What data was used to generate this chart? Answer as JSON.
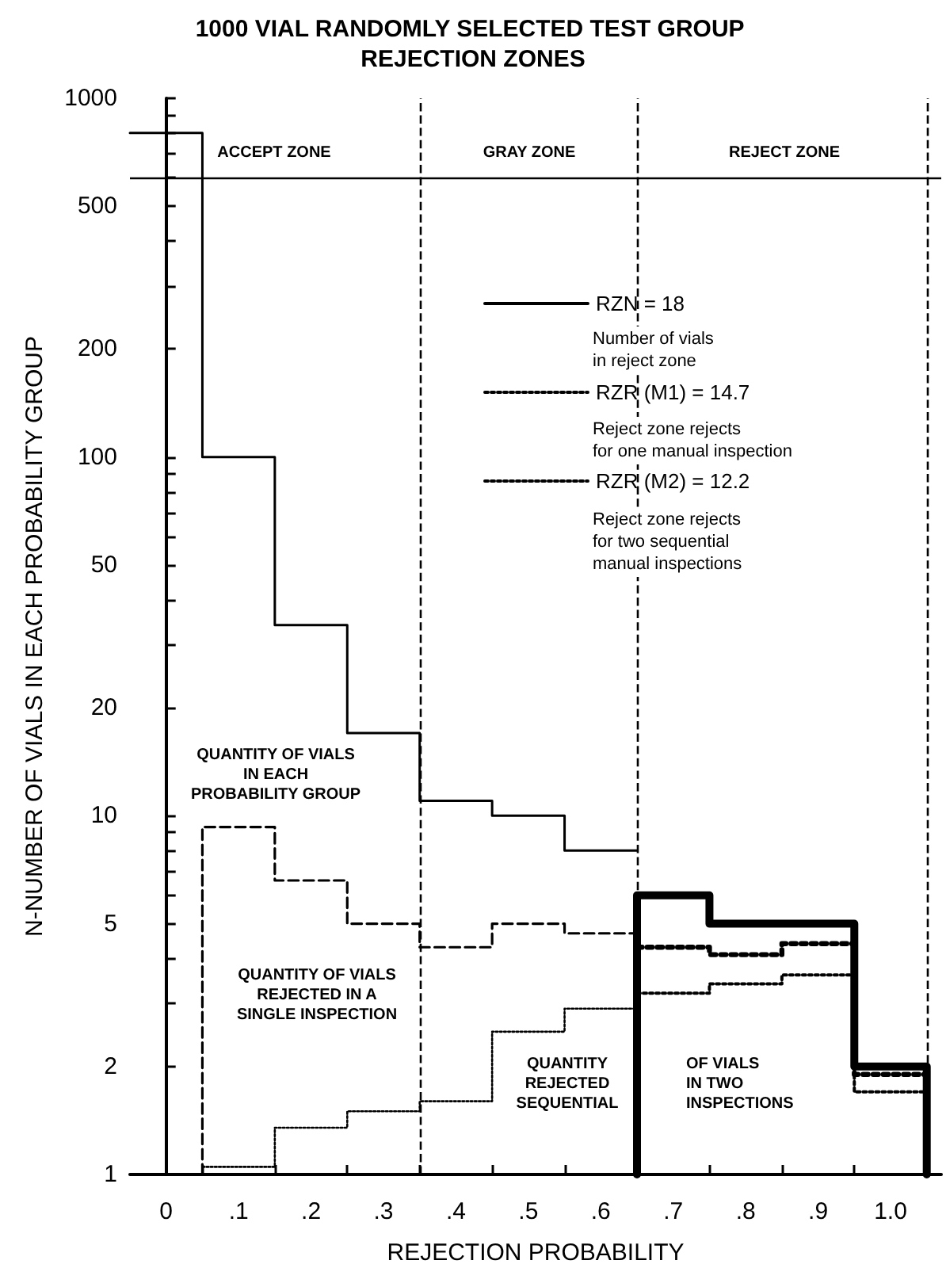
{
  "chart_data": {
    "type": "line",
    "title": "1000 VIAL RANDOMLY SELECTED TEST GROUP REJECTION ZONES",
    "xlabel": "REJECTION PROBABILITY",
    "ylabel": "N-NUMBER OF VIALS IN EACH PROBABILITY GROUP",
    "series": [
      {
        "color": "#000000",
        "line_style": "solid",
        "x": [
          -0.05,
          0.05,
          0.05,
          0.15,
          0.15,
          0.25,
          0.25,
          0.35,
          0.35,
          0.45,
          0.45,
          0.55,
          0.55,
          0.65
        ],
        "values": [
          800,
          800,
          100,
          100,
          34,
          34,
          17,
          17,
          11,
          11,
          10,
          10,
          8,
          8
        ]
      },
      {
        "name": "RZN = 18",
        "color": "#000000",
        "line_style": "solid",
        "x": [
          0.65,
          0.65,
          0.75,
          0.75,
          0.95,
          0.95,
          1.05,
          1.05
        ],
        "values": [
          1,
          6,
          6,
          5,
          5,
          2,
          2,
          1
        ]
      },
      {
        "color": "#000000",
        "line_style": "dashed",
        "x": [
          0.05,
          0.05,
          0.15,
          0.15,
          0.25,
          0.25,
          0.35,
          0.35,
          0.45,
          0.45,
          0.55,
          0.55,
          0.65
        ],
        "values": [
          1,
          9.3,
          9.3,
          6.6,
          6.6,
          5,
          5,
          4.3,
          4.3,
          5,
          5,
          4.7,
          4.7
        ]
      },
      {
        "name": "RZR (M1) = 14.7",
        "color": "#000000",
        "line_style": "dotted",
        "x": [
          0.65,
          0.75,
          0.75,
          0.85,
          0.85,
          0.95,
          0.95,
          1.05
        ],
        "values": [
          4.3,
          4.3,
          4.1,
          4.1,
          4.4,
          4.4,
          1.9,
          1.9
        ]
      },
      {
        "color": "#000000",
        "line_style": "dotted",
        "x": [
          0.05,
          0.15,
          0.15,
          0.25,
          0.25,
          0.35,
          0.35,
          0.45,
          0.45,
          0.55,
          0.55,
          0.65
        ],
        "values": [
          1.05,
          1.05,
          1.35,
          1.35,
          1.5,
          1.5,
          1.6,
          1.6,
          2.5,
          2.5,
          2.9,
          2.9
        ]
      },
      {
        "name": "RZR (M2) = 12.2",
        "color": "#000000",
        "line_style": "dotted",
        "x": [
          0.65,
          0.75,
          0.75,
          0.85,
          0.85,
          0.95,
          0.95,
          1.05
        ],
        "values": [
          3.2,
          3.2,
          3.4,
          3.4,
          3.6,
          3.6,
          1.7,
          1.7
        ]
      }
    ],
    "xlim": [
      -0.05,
      1.07
    ],
    "xticks": [
      {
        "value": 0,
        "label": "0"
      },
      {
        "value": 0.1,
        "label": ".1"
      },
      {
        "value": 0.2,
        "label": ".2"
      },
      {
        "value": 0.3,
        "label": ".3"
      },
      {
        "value": 0.4,
        "label": ".4"
      },
      {
        "value": 0.5,
        "label": ".5"
      },
      {
        "value": 0.6,
        "label": ".6"
      },
      {
        "value": 0.7,
        "label": ".7"
      },
      {
        "value": 0.8,
        "label": ".8"
      },
      {
        "value": 0.9,
        "label": ".9"
      },
      {
        "value": 1.0,
        "label": "1.0"
      },
      {
        "value": 0.05,
        "label": null
      },
      {
        "value": 0.15,
        "label": null
      },
      {
        "value": 0.25,
        "label": null
      },
      {
        "value": 0.35,
        "label": null
      },
      {
        "value": 0.45,
        "label": null
      },
      {
        "value": 0.55,
        "label": null
      },
      {
        "value": 0.65,
        "label": null
      },
      {
        "value": 0.75,
        "label": null
      },
      {
        "value": 0.85,
        "label": null
      },
      {
        "value": 0.95,
        "label": null
      },
      {
        "value": 1.05,
        "label": null
      }
    ],
    "ylim": [
      1,
      1000
    ],
    "yticks": [
      1,
      2,
      5,
      10,
      20,
      50,
      100,
      200,
      500,
      1000,
      {
        "value": 3,
        "label": null
      },
      {
        "value": 4,
        "label": null
      },
      {
        "value": 6,
        "label": null
      },
      {
        "value": 7,
        "label": null
      },
      {
        "value": 8,
        "label": null
      },
      {
        "value": 9,
        "label": null
      },
      {
        "value": 30,
        "label": null
      },
      {
        "value": 40,
        "label": null
      },
      {
        "value": 60,
        "label": null
      },
      {
        "value": 70,
        "label": null
      },
      {
        "value": 80,
        "label": null
      },
      {
        "value": 90,
        "label": null
      },
      {
        "value": 300,
        "label": null
      },
      {
        "value": 400,
        "label": null
      },
      {
        "value": 600,
        "label": null
      },
      {
        "value": 700,
        "label": null
      },
      {
        "value": 800,
        "label": null
      },
      {
        "value": 900,
        "label": null
      }
    ],
    "log": "y",
    "grid": false,
    "legend": "right",
    "marker": "none",
    "ref_lines": [
      {
        "axis": "x",
        "value": 0.35,
        "line_style": "dashed",
        "color": "#000000"
      },
      {
        "axis": "x",
        "value": 0.65,
        "line_style": "dashed",
        "color": "#000000"
      },
      {
        "axis": "x",
        "value": 1.05,
        "line_style": "dashed",
        "color": "#000000"
      },
      {
        "axis": "y",
        "value": 600,
        "line_style": "solid",
        "color": "#000000"
      }
    ],
    "annotations": [
      "ACCEPT ZONE",
      "GRAY ZONE",
      "REJECT ZONE",
      "QUANTITY OF VIALS\nIN EACH\nPROBABILITY GROUP",
      "QUANTITY OF VIALS\nREJECTED IN A\nSINGLE INSPECTION",
      "QUANTITY\nREJECTED\nSEQUENTIAL",
      "OF VIALS\nIN TWO\nINSPECTIONS",
      "Number of vials\nin reject zone",
      "Reject zone rejects\nfor one manual inspection",
      "Reject zone rejects\nfor two sequential\nmanual inspections"
    ]
  }
}
